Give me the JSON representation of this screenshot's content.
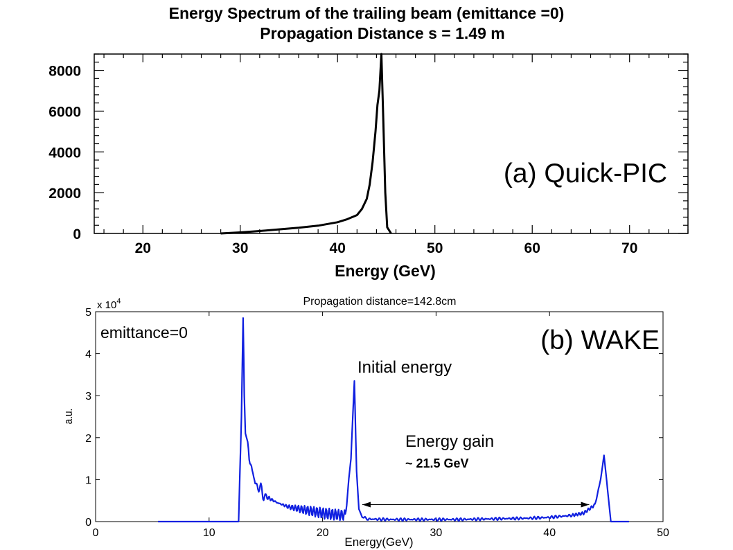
{
  "chart_data": [
    {
      "type": "line",
      "title": "Energy Spectrum of the trailing beam (emittance =0)",
      "subtitle": "Propagation Distance s = 1.49 m",
      "panel_label": "(a) Quick-PIC",
      "xlabel": "Energy (GeV)",
      "ylabel": "",
      "xlim": [
        15,
        76
      ],
      "ylim": [
        0,
        8800
      ],
      "xticks": [
        "20",
        "30",
        "40",
        "50",
        "60",
        "70"
      ],
      "xtick_values": [
        20,
        30,
        40,
        50,
        60,
        70
      ],
      "yticks": [
        "0",
        "2000",
        "4000",
        "6000",
        "8000"
      ],
      "ytick_values": [
        0,
        2000,
        4000,
        6000,
        8000
      ],
      "series": [
        {
          "name": "trailing beam spectrum",
          "color": "#000000",
          "x": [
            28,
            30,
            32,
            34,
            36,
            38,
            40,
            41,
            42,
            42.5,
            43,
            43.3,
            43.6,
            43.9,
            44.1,
            44.3,
            44.5,
            44.7,
            44.9,
            45.1,
            45.5
          ],
          "y": [
            0,
            50,
            120,
            200,
            280,
            380,
            550,
            700,
            900,
            1200,
            1700,
            2400,
            3500,
            5000,
            6300,
            7000,
            8800,
            5500,
            2000,
            300,
            0
          ]
        }
      ]
    },
    {
      "type": "line",
      "title": "Propagation distance=142.8cm",
      "panel_label": "(b) WAKE",
      "xlabel": "Energy(GeV)",
      "ylabel": "a.u.",
      "y_multiplier": "x 10^4",
      "y_multiplier_base": "x 10",
      "y_multiplier_exp": "4",
      "xlim": [
        0,
        50
      ],
      "ylim": [
        0,
        5
      ],
      "xticks": [
        "0",
        "10",
        "20",
        "30",
        "40",
        "50"
      ],
      "xtick_values": [
        0,
        10,
        20,
        30,
        40,
        50
      ],
      "yticks": [
        "0",
        "1",
        "2",
        "3",
        "4",
        "5"
      ],
      "ytick_values": [
        0,
        1,
        2,
        3,
        4,
        5
      ],
      "series": [
        {
          "name": "spectrum",
          "color": "#1020e0",
          "x": [
            5.5,
            12.6,
            12.85,
            13.0,
            13.1,
            13.2,
            13.4,
            13.6,
            13.8,
            14.0,
            14.5,
            15,
            16,
            17,
            18,
            19,
            20,
            21,
            22,
            22.5,
            22.8,
            23.0,
            23.2,
            23.5,
            24,
            26,
            28,
            30,
            32,
            34,
            36,
            38,
            40,
            42,
            43,
            44,
            44.5,
            44.8,
            45.1,
            45.4,
            47
          ],
          "y": [
            0,
            0,
            2.5,
            4.85,
            3.0,
            2.1,
            1.9,
            1.4,
            1.1,
            1.0,
            0.75,
            0.6,
            0.45,
            0.35,
            0.3,
            0.25,
            0.2,
            0.17,
            0.15,
            1.5,
            3.35,
            1.2,
            0.3,
            0.1,
            0.06,
            0.05,
            0.05,
            0.05,
            0.05,
            0.06,
            0.07,
            0.08,
            0.1,
            0.15,
            0.2,
            0.4,
            1.0,
            1.58,
            0.8,
            0,
            0
          ]
        }
      ],
      "annotations": {
        "emittance": "emittance=0",
        "initial_energy": "Initial energy",
        "energy_gain": "Energy gain",
        "energy_gain_value": "~ 21.5 GeV",
        "arrow_from_gev": 23.5,
        "arrow_to_gev": 43.5,
        "arrow_y": 0.9
      }
    }
  ]
}
